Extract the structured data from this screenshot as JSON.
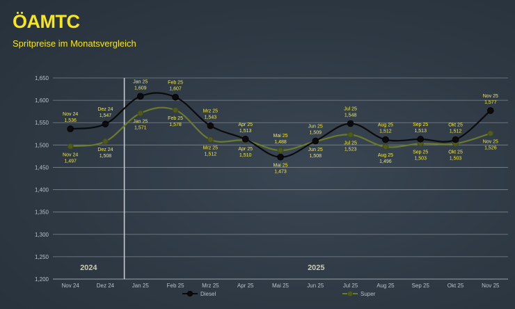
{
  "header": {
    "logo_text": "ÖAMTC",
    "subtitle": "Spritpreise im Monatsvergleich"
  },
  "colors": {
    "background": "#2f3a45",
    "accent_yellow": "#f6e61b",
    "diesel_line": "#0b0b0b",
    "super_line": "#6b7a2c",
    "grid": "#7c858e"
  },
  "chart_data": {
    "type": "line",
    "categories": [
      "Nov 24",
      "Dez 24",
      "Jan 25",
      "Feb 25",
      "Mrz 25",
      "Apr 25",
      "Mai 25",
      "Jun 25",
      "Jul 25",
      "Aug 25",
      "Sep 25",
      "Okt 25",
      "Nov 25"
    ],
    "series": [
      {
        "name": "Diesel",
        "values": [
          1.536,
          1.547,
          1.609,
          1.607,
          1.543,
          1.513,
          1.473,
          1.509,
          1.548,
          1.512,
          1.513,
          1.512,
          1.577
        ],
        "value_labels": [
          "1,536",
          "1,547",
          "1,609",
          "1,607",
          "1,543",
          "1,513",
          "1,473",
          "1,509",
          "1,548",
          "1,512",
          "1,513",
          "1,512",
          "1,577"
        ],
        "label_positions": [
          "above",
          "above",
          "above",
          "above",
          "above",
          "above",
          "below",
          "above",
          "above",
          "above",
          "above",
          "above",
          "above"
        ]
      },
      {
        "name": "Super",
        "values": [
          1.497,
          1.508,
          1.571,
          1.578,
          1.512,
          1.51,
          1.488,
          1.508,
          1.523,
          1.496,
          1.503,
          1.503,
          1.526
        ],
        "value_labels": [
          "1,497",
          "1,508",
          "1,571",
          "1,578",
          "1,512",
          "1,510",
          "1,488",
          "1,508",
          "1,523",
          "1,496",
          "1,503",
          "1,503",
          "1,526"
        ],
        "label_positions": [
          "below",
          "below",
          "below",
          "below",
          "below",
          "below",
          "above",
          "below",
          "below",
          "below",
          "below",
          "below",
          "below"
        ]
      }
    ],
    "y_ticks": [
      "1,200",
      "1,250",
      "1,300",
      "1,350",
      "1,400",
      "1,450",
      "1,500",
      "1,550",
      "1,600",
      "1,650"
    ],
    "ylim": [
      1.2,
      1.65
    ],
    "grid": true,
    "legend": "bottom",
    "year_labels": [
      "2024",
      "2025"
    ],
    "year_divider_after": "Dez 24"
  }
}
